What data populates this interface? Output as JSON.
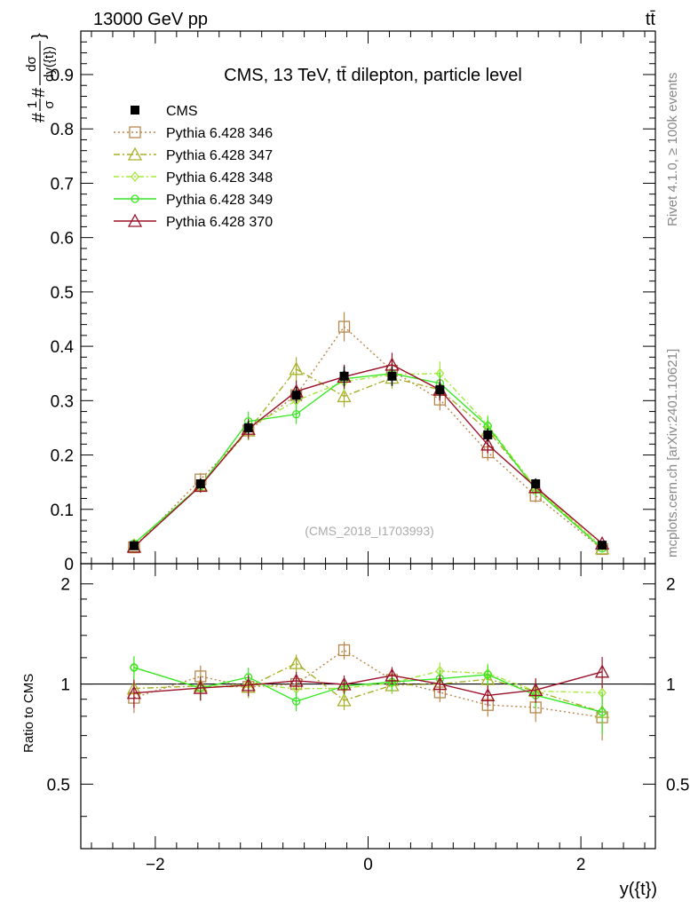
{
  "header": {
    "left": "13000 GeV pp",
    "right": "tt̄"
  },
  "side_labels": {
    "rivet": "Rivet 4.1.0, ≥ 100k events",
    "mcplots": "mcplots.cern.ch [arXiv:2401.10621]"
  },
  "axes": {
    "ylabel_main": "#frac{1}{σ}#frac{dσ}{dy({t})}",
    "ylabel_main_parts": {
      "prefix": "#",
      "frac1_num": "1",
      "frac1_den": "σ",
      "mid": "#",
      "frac2_num": "dσ",
      "frac2_den": "dy({t})",
      "suffix": "}"
    },
    "ylabel_ratio": "Ratio to CMS",
    "xlabel": "y({t})"
  },
  "chart_data": {
    "type": "line",
    "title": "CMS, 13 TeV, tt̄ dilepton, particle level",
    "watermark": "(CMS_2018_I1703993)",
    "xlim": [
      -2.7,
      2.7
    ],
    "ylim": [
      0,
      0.98
    ],
    "ratio_ylim": [
      0.32,
      2.3
    ],
    "x_ticks": [
      -2,
      0,
      2
    ],
    "x_tick_labels": [
      "−2",
      "0",
      "2"
    ],
    "y_ticks": [
      0,
      0.1,
      0.2,
      0.3,
      0.4,
      0.5,
      0.6,
      0.7,
      0.8,
      0.9
    ],
    "y_tick_labels": [
      "0",
      "0.1",
      "0.2",
      "0.3",
      "0.4",
      "0.5",
      "0.6",
      "0.7",
      "0.8",
      "0.9"
    ],
    "ratio_ticks": [
      0.5,
      1,
      2
    ],
    "ratio_tick_labels": [
      "0.5",
      "1",
      "2"
    ],
    "x": [
      -2.2,
      -1.575,
      -1.125,
      -0.675,
      -0.225,
      0.225,
      0.675,
      1.125,
      1.575,
      2.2
    ],
    "data": {
      "name": "CMS",
      "color": "#000000",
      "values": [
        0.033,
        0.147,
        0.25,
        0.31,
        0.345,
        0.345,
        0.32,
        0.237,
        0.147,
        0.034
      ],
      "errors": [
        0.004,
        0.01,
        0.012,
        0.015,
        0.018,
        0.018,
        0.015,
        0.012,
        0.01,
        0.004
      ]
    },
    "series": [
      {
        "name": "Pythia 6.428 346",
        "color": "#b8864b",
        "dash": "2,3",
        "marker": "square",
        "values": [
          0.03,
          0.155,
          0.245,
          0.31,
          0.436,
          0.355,
          0.302,
          0.205,
          0.125,
          0.027
        ],
        "errors": [
          0.003,
          0.012,
          0.018,
          0.02,
          0.027,
          0.022,
          0.02,
          0.016,
          0.012,
          0.004
        ]
      },
      {
        "name": "Pythia 6.428 347",
        "color": "#a7b027",
        "dash": "7,3,2,3",
        "marker": "triangle",
        "values": [
          0.032,
          0.145,
          0.245,
          0.358,
          0.308,
          0.342,
          0.32,
          0.245,
          0.14,
          0.028
        ],
        "errors": [
          0.003,
          0.012,
          0.018,
          0.022,
          0.02,
          0.02,
          0.02,
          0.018,
          0.012,
          0.004
        ]
      },
      {
        "name": "Pythia 6.428 348",
        "color": "#a6e83c",
        "dash": "6,3,2,3",
        "marker": "diamond",
        "values": [
          0.037,
          0.143,
          0.25,
          0.3,
          0.335,
          0.348,
          0.35,
          0.255,
          0.14,
          0.032
        ],
        "errors": [
          0.003,
          0.012,
          0.018,
          0.02,
          0.02,
          0.022,
          0.022,
          0.018,
          0.012,
          0.004
        ]
      },
      {
        "name": "Pythia 6.428 349",
        "color": "#39e626",
        "dash": "",
        "marker": "circle",
        "values": [
          0.037,
          0.143,
          0.262,
          0.275,
          0.34,
          0.35,
          0.332,
          0.253,
          0.136,
          0.028
        ],
        "errors": [
          0.003,
          0.012,
          0.018,
          0.018,
          0.02,
          0.022,
          0.02,
          0.018,
          0.012,
          0.004
        ]
      },
      {
        "name": "Pythia 6.428 370",
        "color": "#9b1029",
        "dash": "",
        "marker": "triangle",
        "values": [
          0.031,
          0.143,
          0.248,
          0.317,
          0.344,
          0.366,
          0.32,
          0.219,
          0.141,
          0.037
        ],
        "errors": [
          0.003,
          0.012,
          0.018,
          0.02,
          0.022,
          0.022,
          0.02,
          0.016,
          0.012,
          0.004
        ]
      }
    ]
  }
}
